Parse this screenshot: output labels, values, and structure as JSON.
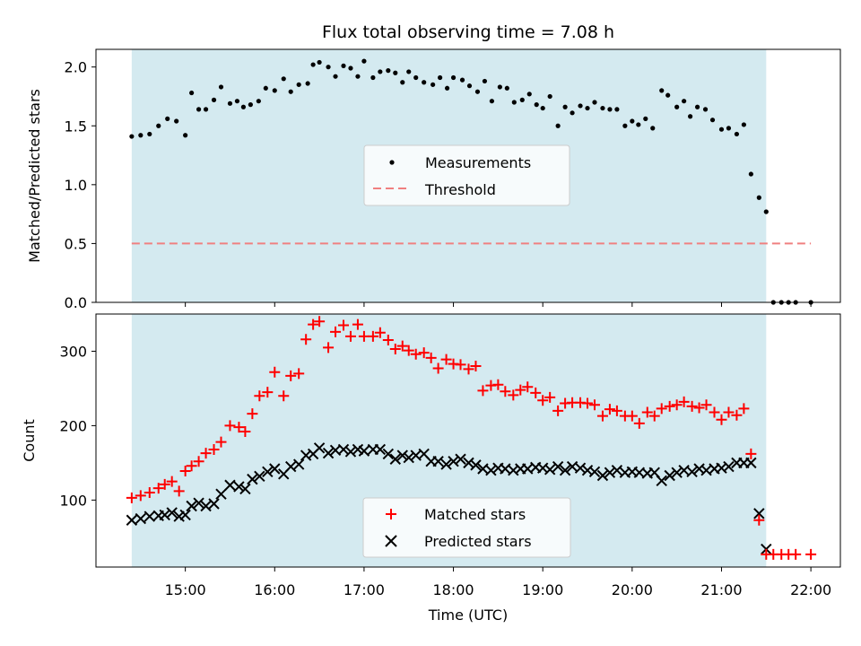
{
  "chart_data": [
    {
      "type": "scatter",
      "title": "Flux total observing time = 7.08 h",
      "xlabel": "",
      "ylabel": "Matched/Predicted stars",
      "xlim": [
        14.0,
        22.33
      ],
      "ylim": [
        0.0,
        2.15
      ],
      "yticks": [
        "0.0",
        "0.5",
        "1.0",
        "1.5",
        "2.0"
      ],
      "ytick_values": [
        0.0,
        0.5,
        1.0,
        1.5,
        2.0
      ],
      "shaded_region": {
        "x_start": 14.4,
        "x_end": 21.5,
        "color": "#d4eaf0"
      },
      "threshold": {
        "name": "Threshold",
        "y": 0.5,
        "x_start": 14.4,
        "x_end": 22.0,
        "color": "#f08080"
      },
      "legend_position": "center",
      "series": [
        {
          "name": "Measurements",
          "color": "#000000",
          "x": [
            14.4,
            14.5,
            14.6,
            14.7,
            14.8,
            14.9,
            15.0,
            15.07,
            15.15,
            15.23,
            15.32,
            15.4,
            15.5,
            15.58,
            15.65,
            15.73,
            15.82,
            15.9,
            16.0,
            16.1,
            16.18,
            16.27,
            16.37,
            16.43,
            16.5,
            16.6,
            16.68,
            16.77,
            16.85,
            16.93,
            17.0,
            17.1,
            17.18,
            17.27,
            17.35,
            17.43,
            17.5,
            17.58,
            17.67,
            17.77,
            17.85,
            17.93,
            18.0,
            18.1,
            18.18,
            18.27,
            18.35,
            18.43,
            18.52,
            18.6,
            18.68,
            18.77,
            18.85,
            18.93,
            19.0,
            19.08,
            19.17,
            19.25,
            19.33,
            19.42,
            19.5,
            19.58,
            19.67,
            19.75,
            19.83,
            19.92,
            20.0,
            20.07,
            20.15,
            20.23,
            20.33,
            20.4,
            20.5,
            20.58,
            20.65,
            20.73,
            20.82,
            20.9,
            21.0,
            21.08,
            21.17,
            21.25,
            21.33,
            21.42,
            21.5,
            21.58,
            21.67,
            21.75,
            21.83,
            22.0
          ],
          "y": [
            1.41,
            1.42,
            1.43,
            1.5,
            1.56,
            1.54,
            1.42,
            1.78,
            1.64,
            1.64,
            1.72,
            1.83,
            1.69,
            1.71,
            1.66,
            1.68,
            1.71,
            1.82,
            1.8,
            1.9,
            1.79,
            1.85,
            1.86,
            2.02,
            2.04,
            2.0,
            1.92,
            2.01,
            1.99,
            1.92,
            2.05,
            1.91,
            1.96,
            1.97,
            1.95,
            1.87,
            1.96,
            1.91,
            1.87,
            1.85,
            1.91,
            1.82,
            1.91,
            1.89,
            1.84,
            1.79,
            1.88,
            1.71,
            1.83,
            1.82,
            1.7,
            1.72,
            1.77,
            1.68,
            1.65,
            1.75,
            1.5,
            1.66,
            1.61,
            1.67,
            1.65,
            1.7,
            1.65,
            1.64,
            1.64,
            1.5,
            1.54,
            1.51,
            1.56,
            1.48,
            1.8,
            1.76,
            1.66,
            1.71,
            1.58,
            1.66,
            1.64,
            1.55,
            1.47,
            1.48,
            1.43,
            1.51,
            1.09,
            0.89,
            0.77,
            0.0,
            0.0,
            0.0,
            0.0,
            0.0
          ]
        }
      ]
    },
    {
      "type": "scatter",
      "title": "",
      "xlabel": "Time (UTC)",
      "ylabel": "Count",
      "xlim": [
        14.0,
        22.33
      ],
      "ylim": [
        10,
        350
      ],
      "xticks": [
        "15:00",
        "16:00",
        "17:00",
        "18:00",
        "19:00",
        "20:00",
        "21:00",
        "22:00"
      ],
      "xtick_values": [
        15,
        16,
        17,
        18,
        19,
        20,
        21,
        22
      ],
      "yticks": [
        "100",
        "200",
        "300"
      ],
      "ytick_values": [
        100,
        200,
        300
      ],
      "shaded_region": {
        "x_start": 14.4,
        "x_end": 21.5,
        "color": "#d4eaf0"
      },
      "legend_position": "lower center",
      "series": [
        {
          "name": "Matched stars",
          "marker": "plus",
          "color": "#ff0000",
          "x": [
            14.4,
            14.5,
            14.6,
            14.7,
            14.77,
            14.85,
            14.93,
            15.0,
            15.07,
            15.15,
            15.23,
            15.32,
            15.4,
            15.5,
            15.6,
            15.67,
            15.75,
            15.83,
            15.92,
            16.0,
            16.1,
            16.18,
            16.27,
            16.35,
            16.43,
            16.5,
            16.6,
            16.68,
            16.77,
            16.85,
            16.93,
            17.0,
            17.1,
            17.18,
            17.27,
            17.35,
            17.43,
            17.5,
            17.58,
            17.67,
            17.75,
            17.83,
            17.92,
            18.0,
            18.08,
            18.17,
            18.25,
            18.33,
            18.42,
            18.5,
            18.58,
            18.67,
            18.75,
            18.83,
            18.92,
            19.0,
            19.08,
            19.17,
            19.25,
            19.33,
            19.42,
            19.5,
            19.58,
            19.67,
            19.75,
            19.83,
            19.92,
            20.0,
            20.08,
            20.17,
            20.25,
            20.33,
            20.42,
            20.5,
            20.58,
            20.67,
            20.75,
            20.83,
            20.92,
            21.0,
            21.08,
            21.17,
            21.25,
            21.33,
            21.42,
            21.5,
            21.58,
            21.67,
            21.75,
            21.83,
            22.0
          ],
          "y": [
            103,
            106,
            110,
            116,
            121,
            125,
            112,
            139,
            146,
            152,
            163,
            168,
            178,
            200,
            198,
            192,
            216,
            240,
            245,
            272,
            240,
            267,
            270,
            316,
            336,
            340,
            305,
            326,
            335,
            320,
            336,
            320,
            320,
            325,
            315,
            303,
            307,
            301,
            296,
            298,
            291,
            277,
            289,
            283,
            282,
            276,
            280,
            247,
            254,
            255,
            246,
            241,
            248,
            252,
            244,
            234,
            238,
            220,
            230,
            231,
            231,
            230,
            228,
            213,
            222,
            220,
            213,
            213,
            203,
            218,
            213,
            223,
            226,
            228,
            232,
            226,
            224,
            228,
            218,
            208,
            218,
            214,
            223,
            162,
            73,
            27,
            27,
            27,
            27,
            27,
            27
          ]
        },
        {
          "name": "Predicted stars",
          "marker": "x",
          "color": "#000000",
          "x": [
            14.4,
            14.5,
            14.6,
            14.7,
            14.77,
            14.85,
            14.93,
            15.0,
            15.07,
            15.15,
            15.23,
            15.32,
            15.4,
            15.5,
            15.6,
            15.67,
            15.75,
            15.83,
            15.92,
            16.0,
            16.1,
            16.18,
            16.27,
            16.35,
            16.43,
            16.5,
            16.6,
            16.68,
            16.77,
            16.85,
            16.93,
            17.0,
            17.1,
            17.18,
            17.27,
            17.35,
            17.43,
            17.5,
            17.58,
            17.67,
            17.75,
            17.83,
            17.92,
            18.0,
            18.08,
            18.17,
            18.25,
            18.33,
            18.42,
            18.5,
            18.58,
            18.67,
            18.75,
            18.83,
            18.92,
            19.0,
            19.08,
            19.17,
            19.25,
            19.33,
            19.42,
            19.5,
            19.58,
            19.67,
            19.75,
            19.83,
            19.92,
            20.0,
            20.08,
            20.17,
            20.25,
            20.33,
            20.42,
            20.5,
            20.58,
            20.67,
            20.75,
            20.83,
            20.92,
            21.0,
            21.08,
            21.17,
            21.25,
            21.33,
            21.42,
            21.5
          ],
          "y": [
            73,
            75,
            78,
            79,
            80,
            83,
            78,
            80,
            92,
            96,
            92,
            95,
            108,
            120,
            118,
            115,
            128,
            132,
            138,
            142,
            135,
            145,
            148,
            160,
            162,
            170,
            163,
            167,
            168,
            165,
            168,
            166,
            168,
            168,
            162,
            155,
            160,
            157,
            160,
            162,
            152,
            152,
            148,
            152,
            155,
            150,
            147,
            142,
            140,
            143,
            142,
            140,
            142,
            142,
            144,
            143,
            141,
            145,
            140,
            145,
            143,
            140,
            138,
            133,
            137,
            140,
            137,
            138,
            137,
            136,
            137,
            126,
            133,
            137,
            140,
            138,
            142,
            140,
            142,
            143,
            145,
            150,
            150,
            150,
            82,
            34
          ]
        }
      ]
    }
  ]
}
